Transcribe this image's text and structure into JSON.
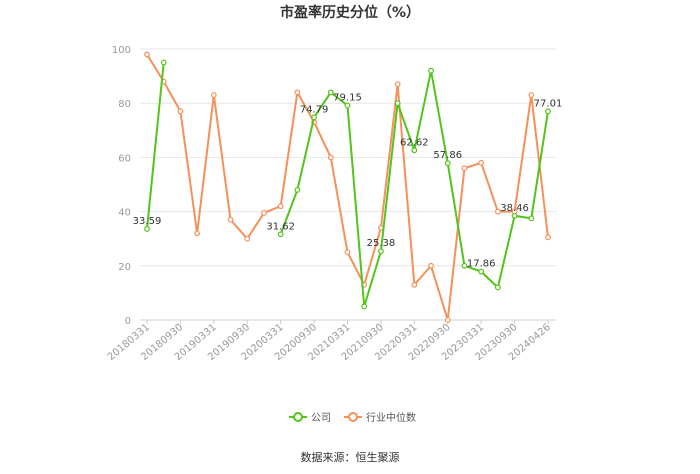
{
  "title": "市盈率历史分位（%）",
  "source_text": "数据来源：恒生聚源",
  "chart_data": {
    "type": "line",
    "title": "市盈率历史分位（%）",
    "xlabel": "",
    "ylabel": "",
    "ylim": [
      0,
      100
    ],
    "yticks": [
      0,
      20,
      40,
      60,
      80,
      100
    ],
    "grid": true,
    "legend_position": "bottom",
    "x": [
      "20180331",
      "20180630",
      "20180930",
      "20181231",
      "20190331",
      "20190630",
      "20190930",
      "20191231",
      "20200331",
      "20200630",
      "20200930",
      "20201231",
      "20210331",
      "20210630",
      "20210930",
      "20211231",
      "20220331",
      "20220630",
      "20220930",
      "20221231",
      "20230331",
      "20230630",
      "20230930",
      "20231231",
      "20240426"
    ],
    "xticks": [
      "20180331",
      "20180930",
      "20190331",
      "20190930",
      "20200331",
      "20200930",
      "20210331",
      "20210930",
      "20220331",
      "20220930",
      "20230331",
      "20230930",
      "20240426"
    ],
    "series": [
      {
        "name": "公司",
        "color": "#52c41a",
        "values": [
          33.59,
          95,
          null,
          null,
          null,
          null,
          null,
          null,
          31.62,
          48,
          74.79,
          84,
          79.15,
          5,
          25.38,
          80,
          62.62,
          92,
          57.86,
          20,
          17.86,
          12,
          38.46,
          37.5,
          77.01
        ],
        "labels": [
          {
            "index": 0,
            "text": "33.59"
          },
          {
            "index": 8,
            "text": "31.62"
          },
          {
            "index": 10,
            "text": "74.79"
          },
          {
            "index": 12,
            "text": "79.15"
          },
          {
            "index": 14,
            "text": "25.38"
          },
          {
            "index": 16,
            "text": "62.62"
          },
          {
            "index": 18,
            "text": "57.86"
          },
          {
            "index": 20,
            "text": "17.86"
          },
          {
            "index": 22,
            "text": "38.46"
          },
          {
            "index": 24,
            "text": "77.01"
          }
        ]
      },
      {
        "name": "行业中位数",
        "color": "#f4915b",
        "values": [
          98,
          88,
          77,
          32,
          83,
          37,
          30,
          39.5,
          42,
          84,
          73,
          60,
          25,
          13,
          34,
          87,
          13,
          20,
          0,
          56,
          58,
          40,
          40,
          83,
          30.5
        ]
      }
    ]
  }
}
